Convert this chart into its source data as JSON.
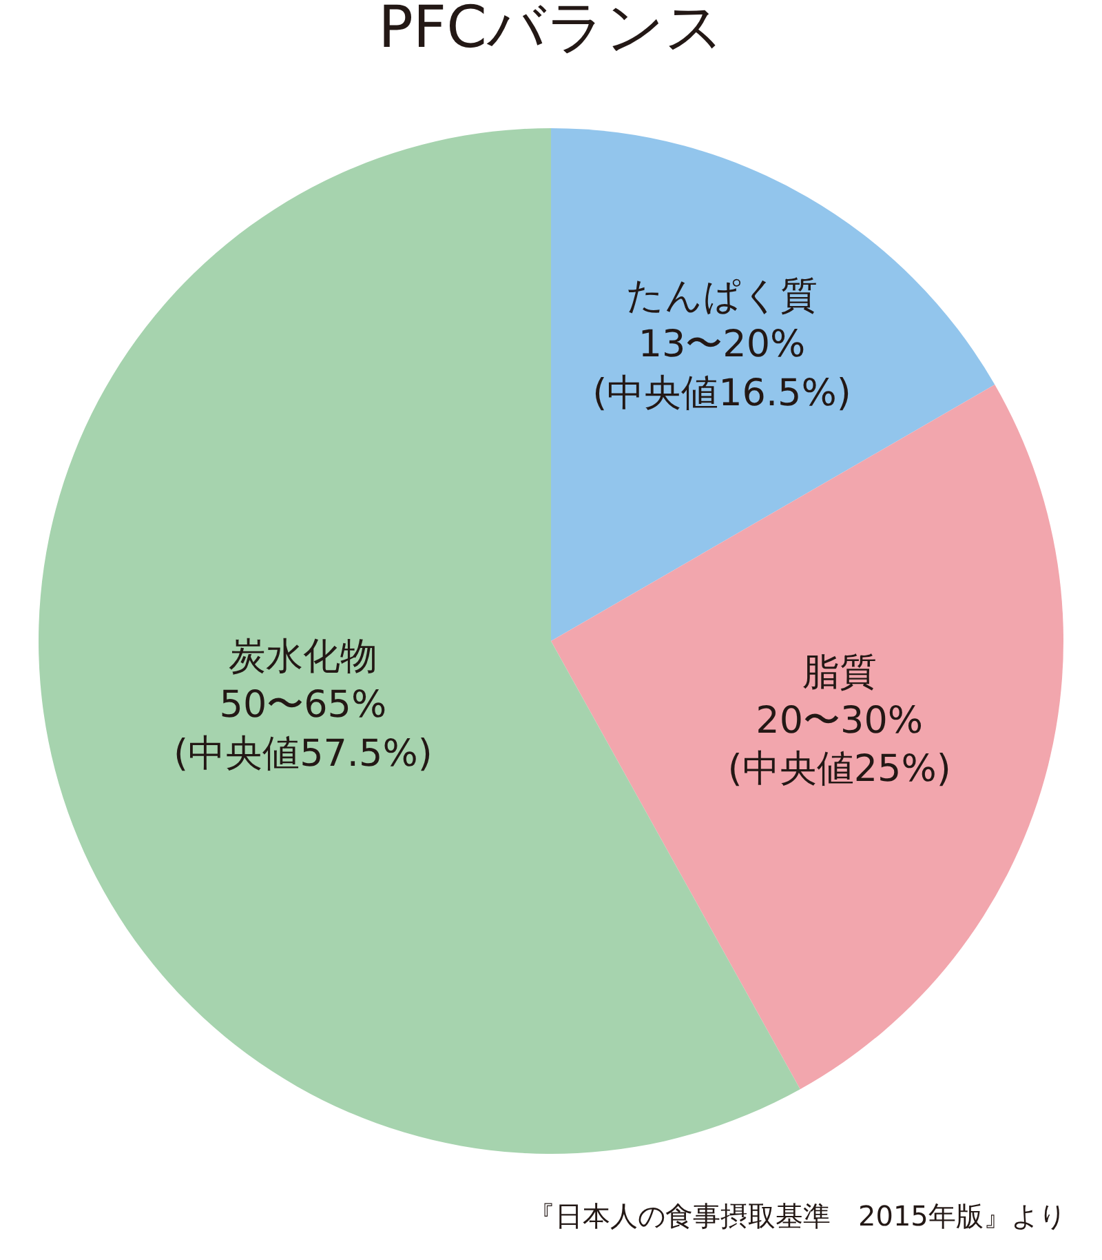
{
  "chart_data": {
    "type": "pie",
    "title": "PFCバランス",
    "categories": [
      "たんぱく質",
      "脂質",
      "炭水化物"
    ],
    "values": [
      16.5,
      25,
      57.5
    ],
    "value_labels": [
      "13〜20%\n(中央値16.5%)",
      "20〜30%\n(中央値25%)",
      "50〜65%\n(中央値57.5%)"
    ],
    "colors": [
      "#92c5ec",
      "#f2a6ad",
      "#a6d3ae"
    ],
    "annotations": [
      "『日本人の食事摂取基準　2015年版』より"
    ]
  }
}
